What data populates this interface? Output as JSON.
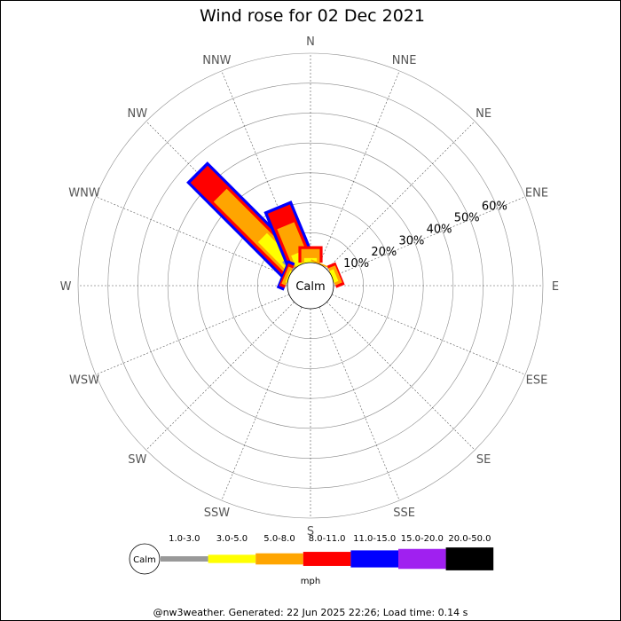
{
  "chart_data": {
    "type": "wind-rose",
    "title": "Wind rose for 02 Dec 2021",
    "directions": [
      "N",
      "NNE",
      "NE",
      "ENE",
      "E",
      "ESE",
      "SE",
      "SSE",
      "S",
      "SSW",
      "SW",
      "WSW",
      "W",
      "WNW",
      "NW",
      "NNW"
    ],
    "ring_labels": [
      "10%",
      "20%",
      "30%",
      "40%",
      "50%",
      "60%"
    ],
    "ring_max_percent": 70,
    "calm_label": "Calm",
    "legend": {
      "calm_label": "Calm",
      "unit": "mph",
      "bins": [
        {
          "label": "1.0-3.0",
          "color": "#999999"
        },
        {
          "label": "3.0-5.0",
          "color": "#ffff00"
        },
        {
          "label": "5.0-8.0",
          "color": "#ffa500"
        },
        {
          "label": "8.0-11.0",
          "color": "#ff0000"
        },
        {
          "label": "11.0-15.0",
          "color": "#0000ff"
        },
        {
          "label": "15.0-20.0",
          "color": "#a020f0"
        },
        {
          "label": "20.0-50.0",
          "color": "#000000"
        }
      ]
    },
    "series": [
      {
        "direction": "NW",
        "cumulative": [
          4.5,
          15,
          35,
          45,
          46
        ]
      },
      {
        "direction": "NNW",
        "cumulative": [
          0,
          4,
          14,
          20,
          21
        ]
      },
      {
        "direction": "N",
        "cumulative": [
          0,
          1.5,
          4.5,
          5.5
        ]
      },
      {
        "direction": "NNE",
        "cumulative": [
          0,
          0,
          0.5
        ]
      },
      {
        "direction": "ENE",
        "cumulative": [
          0,
          1.5,
          2.5,
          3
        ]
      },
      {
        "direction": "WNW",
        "cumulative": [
          0,
          0.5,
          1.5,
          2.0,
          2.5
        ]
      }
    ]
  },
  "footer": "@nw3weather. Generated: 22 Jun 2025 22:26; Load time: 0.14 s"
}
